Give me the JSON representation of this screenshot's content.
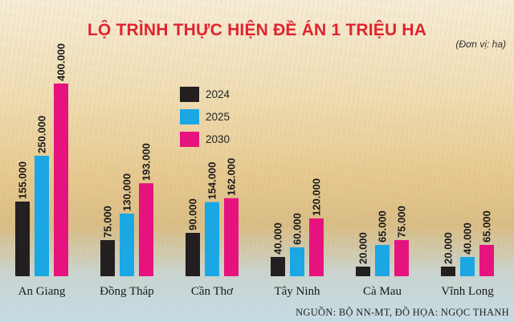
{
  "title": "LỘ TRÌNH THỰC HIỆN ĐỀ ÁN 1 TRIỆU HA",
  "unit": "(Đơn vị: ha)",
  "source": "NGUỒN: BỘ NN-MT, ĐỒ HỌA: NGỌC THANH",
  "colors": {
    "2024": "#231f20",
    "2025": "#1ba7e4",
    "2030": "#e6137f"
  },
  "chart_data": {
    "type": "bar",
    "categories": [
      "An Giang",
      "Đồng Tháp",
      "Cần Thơ",
      "Tây Ninh",
      "Cà Mau",
      "Vĩnh Long"
    ],
    "series": [
      {
        "name": "2024",
        "values": [
          155000,
          75000,
          90000,
          40000,
          20000,
          20000
        ],
        "labels": [
          "155.000",
          "75.000",
          "90.000",
          "40.000",
          "20.000",
          "20.000"
        ]
      },
      {
        "name": "2025",
        "values": [
          250000,
          130000,
          154000,
          60000,
          65000,
          40000
        ],
        "labels": [
          "250.000",
          "130.000",
          "154.000",
          "60.000",
          "65.000",
          "40.000"
        ]
      },
      {
        "name": "2030",
        "values": [
          400000,
          193000,
          162000,
          120000,
          75000,
          65000
        ],
        "labels": [
          "400.000",
          "193.000",
          "162.000",
          "120.000",
          "75.000",
          "65.000"
        ]
      }
    ],
    "legend": [
      "2024",
      "2025",
      "2030"
    ],
    "legend_position": "center-left",
    "ylim": [
      0,
      400000
    ],
    "grid": false
  }
}
